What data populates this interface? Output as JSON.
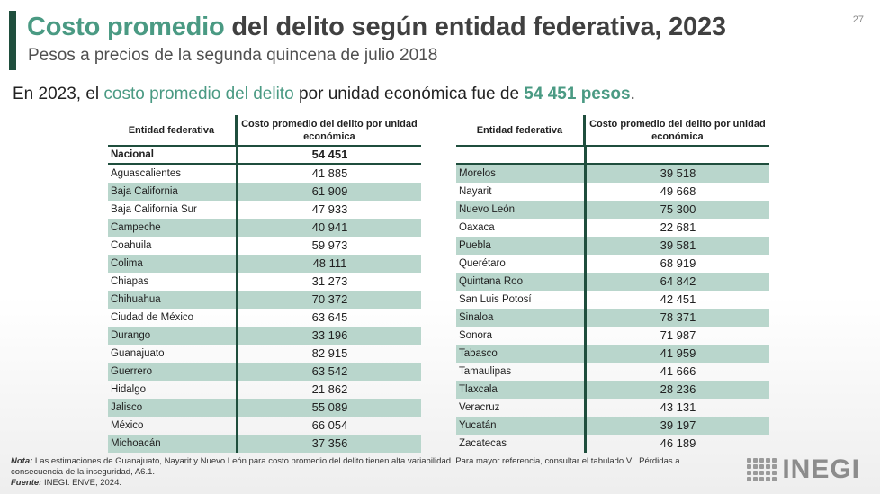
{
  "slide": {
    "title_highlight": "Costo promedio",
    "title_rest": " del delito según entidad federativa, 2023",
    "subtitle": "Pesos a precios de la segunda quincena de julio 2018",
    "page_number": "27"
  },
  "intro": {
    "before": "En 2023, el ",
    "highlight": "costo promedio del delito",
    "middle": " por unidad económica fue de ",
    "value": "54 451 pesos",
    "after": "."
  },
  "table": {
    "col1_header": "Entidad federativa",
    "col2_header": "Costo promedio del delito por unidad económica",
    "national": {
      "label": "Nacional",
      "value": "54 451"
    },
    "left_rows": [
      {
        "entity": "Aguascalientes",
        "value": "41 885"
      },
      {
        "entity": "Baja California",
        "value": "61 909"
      },
      {
        "entity": "Baja California Sur",
        "value": "47 933"
      },
      {
        "entity": "Campeche",
        "value": "40 941"
      },
      {
        "entity": "Coahuila",
        "value": "59 973"
      },
      {
        "entity": "Colima",
        "value": "48 111"
      },
      {
        "entity": "Chiapas",
        "value": "31 273"
      },
      {
        "entity": "Chihuahua",
        "value": "70 372"
      },
      {
        "entity": "Ciudad de México",
        "value": "63 645"
      },
      {
        "entity": "Durango",
        "value": "33 196"
      },
      {
        "entity": "Guanajuato",
        "value": "82 915"
      },
      {
        "entity": "Guerrero",
        "value": "63 542"
      },
      {
        "entity": "Hidalgo",
        "value": "21 862"
      },
      {
        "entity": "Jalisco",
        "value": "55 089"
      },
      {
        "entity": "México",
        "value": "66 054"
      },
      {
        "entity": "Michoacán",
        "value": "37 356"
      }
    ],
    "right_rows": [
      {
        "entity": "Morelos",
        "value": "39 518"
      },
      {
        "entity": "Nayarit",
        "value": "49 668"
      },
      {
        "entity": "Nuevo León",
        "value": "75 300"
      },
      {
        "entity": "Oaxaca",
        "value": "22 681"
      },
      {
        "entity": "Puebla",
        "value": "39 581"
      },
      {
        "entity": "Querétaro",
        "value": "68 919"
      },
      {
        "entity": "Quintana Roo",
        "value": "64 842"
      },
      {
        "entity": "San Luis Potosí",
        "value": "42 451"
      },
      {
        "entity": "Sinaloa",
        "value": "78 371"
      },
      {
        "entity": "Sonora",
        "value": "71 987"
      },
      {
        "entity": "Tabasco",
        "value": "41 959"
      },
      {
        "entity": "Tamaulipas",
        "value": "41 666"
      },
      {
        "entity": "Tlaxcala",
        "value": "28 236"
      },
      {
        "entity": "Veracruz",
        "value": "43 131"
      },
      {
        "entity": "Yucatán",
        "value": "39 197"
      },
      {
        "entity": "Zacatecas",
        "value": "46 189"
      }
    ]
  },
  "footer": {
    "note_label": "Nota:",
    "note_text": " Las estimaciones de Guanajuato, Nayarit y Nuevo León para costo promedio del delito tienen alta variabilidad. Para mayor referencia, consultar el tabulado VI. Pérdidas a consecuencia de la inseguridad, A6.1.",
    "source_label": "Fuente:",
    "source_text": " INEGI. ENVE, 2024.",
    "logo_text": "INEGI"
  },
  "colors": {
    "accent_dark": "#1f4e3d",
    "accent_teal": "#4a9a83",
    "row_shade": "#b9d6cc"
  }
}
